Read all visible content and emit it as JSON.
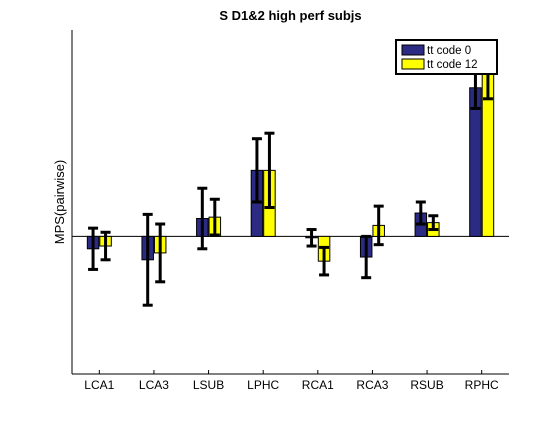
{
  "chart_data": {
    "type": "bar",
    "title": "S D1&2 high perf subjs",
    "xlabel": "",
    "ylabel": "MPS(pairwise)",
    "categories": [
      "LCA1",
      "LCA3",
      "LSUB",
      "LPHC",
      "RCA1",
      "RCA3",
      "RSUB",
      "RPHC"
    ],
    "ylim": [
      -1.0,
      1.5
    ],
    "show_y_ticks": false,
    "zero_line": true,
    "legend_position": "top-right",
    "series": [
      {
        "name": "tt code 0",
        "color": "#2b2b84",
        "values": [
          -0.09,
          -0.17,
          0.13,
          0.48,
          -0.01,
          -0.15,
          0.17,
          1.08
        ],
        "errors": [
          0.15,
          0.33,
          0.22,
          0.23,
          0.06,
          0.15,
          0.08,
          0.15
        ]
      },
      {
        "name": "tt code 12",
        "color": "#ffff00",
        "values": [
          -0.07,
          -0.12,
          0.14,
          0.48,
          -0.18,
          0.08,
          0.1,
          1.2
        ],
        "errors": [
          0.1,
          0.21,
          0.13,
          0.27,
          0.1,
          0.14,
          0.05,
          0.2
        ]
      }
    ]
  }
}
